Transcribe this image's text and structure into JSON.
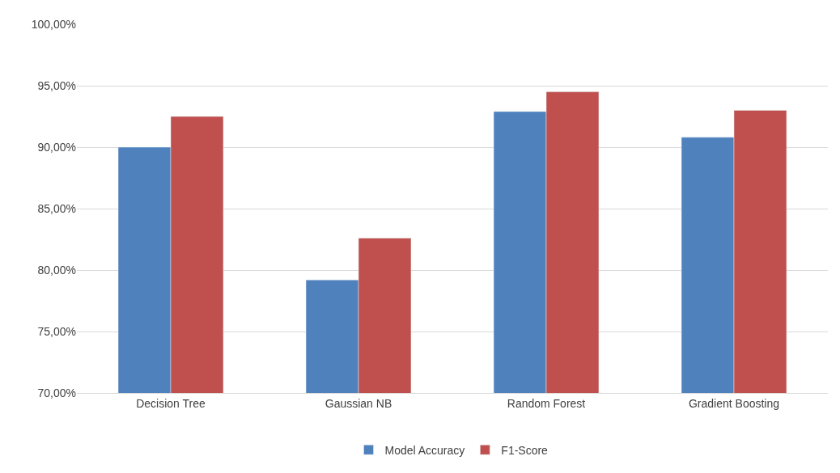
{
  "chart_data": {
    "type": "bar",
    "categories": [
      "Decision Tree",
      "Gaussian NB",
      "Random Forest",
      "Gradient Boosting"
    ],
    "series": [
      {
        "name": "Model Accuracy",
        "color": "#4f81bd",
        "values": [
          90.0,
          79.2,
          92.9,
          90.8
        ]
      },
      {
        "name": "F1-Score",
        "color": "#c0504d",
        "values": [
          92.5,
          82.6,
          94.5,
          93.0
        ]
      }
    ],
    "ylim": [
      70,
      100
    ],
    "yticks": [
      {
        "value": 70,
        "label": "70,00%"
      },
      {
        "value": 75,
        "label": "75,00%"
      },
      {
        "value": 80,
        "label": "80,00%"
      },
      {
        "value": 85,
        "label": "85,00%"
      },
      {
        "value": 90,
        "label": "90,00%"
      },
      {
        "value": 95,
        "label": "95,00%"
      },
      {
        "value": 100,
        "label": "100,00%"
      }
    ],
    "grid": "y",
    "legend": "bottom"
  }
}
